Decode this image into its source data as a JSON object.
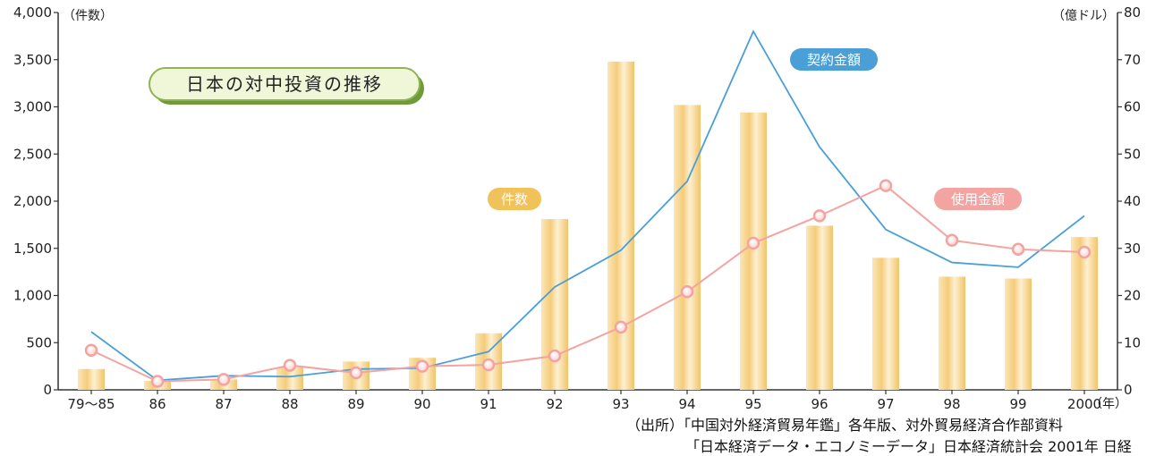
{
  "chart_data": {
    "type": "bar+line",
    "title": "日本の対中投資の推移",
    "left_axis_unit": "（件数）",
    "right_axis_unit": "（億ドル）",
    "x_unit": "（年）",
    "categories": [
      "79～85",
      "86",
      "87",
      "88",
      "89",
      "90",
      "91",
      "92",
      "93",
      "94",
      "95",
      "96",
      "97",
      "98",
      "99",
      "2000"
    ],
    "y_left": {
      "ylim": [
        0,
        4000
      ],
      "ticks": [
        "4,000",
        "3,500",
        "3,000",
        "2,500",
        "2,000",
        "1,500",
        "1,000",
        "500",
        "0"
      ]
    },
    "y_right": {
      "ylim": [
        0,
        80
      ],
      "ticks": [
        "80",
        "70",
        "60",
        "50",
        "40",
        "30",
        "20",
        "10",
        "0"
      ]
    },
    "series": [
      {
        "name": "件数",
        "type": "bar",
        "axis": "left",
        "color": "#f7d48a",
        "values": [
          220,
          95,
          110,
          240,
          300,
          340,
          600,
          1810,
          3480,
          3020,
          2940,
          1740,
          1400,
          1200,
          1180,
          1620
        ]
      },
      {
        "name": "契約金額",
        "type": "line",
        "axis": "right",
        "color": "#4a9fd6",
        "values": [
          12.3,
          2.0,
          3.0,
          2.8,
          4.4,
          4.6,
          8.1,
          21.8,
          29.6,
          44.2,
          76.0,
          51.5,
          34.0,
          27.0,
          26.0,
          36.9
        ]
      },
      {
        "name": "使用金額",
        "type": "line",
        "axis": "right",
        "color": "#f3a3a0",
        "values": [
          8.4,
          1.8,
          2.2,
          5.2,
          3.6,
          5.0,
          5.3,
          7.2,
          13.3,
          20.8,
          31.1,
          36.9,
          43.3,
          31.7,
          29.8,
          29.2
        ]
      }
    ],
    "legend_labels": {
      "kensu": "件数",
      "keiyaku": "契約金額",
      "shiyo": "使用金額"
    }
  },
  "source": {
    "line1": "（出所）「中国対外経済貿易年鑑」各年版、対外貿易経済合作部資料",
    "line2": "「日本経済データ・エコノミーデータ」日本経済統計会 2001年 日経"
  }
}
